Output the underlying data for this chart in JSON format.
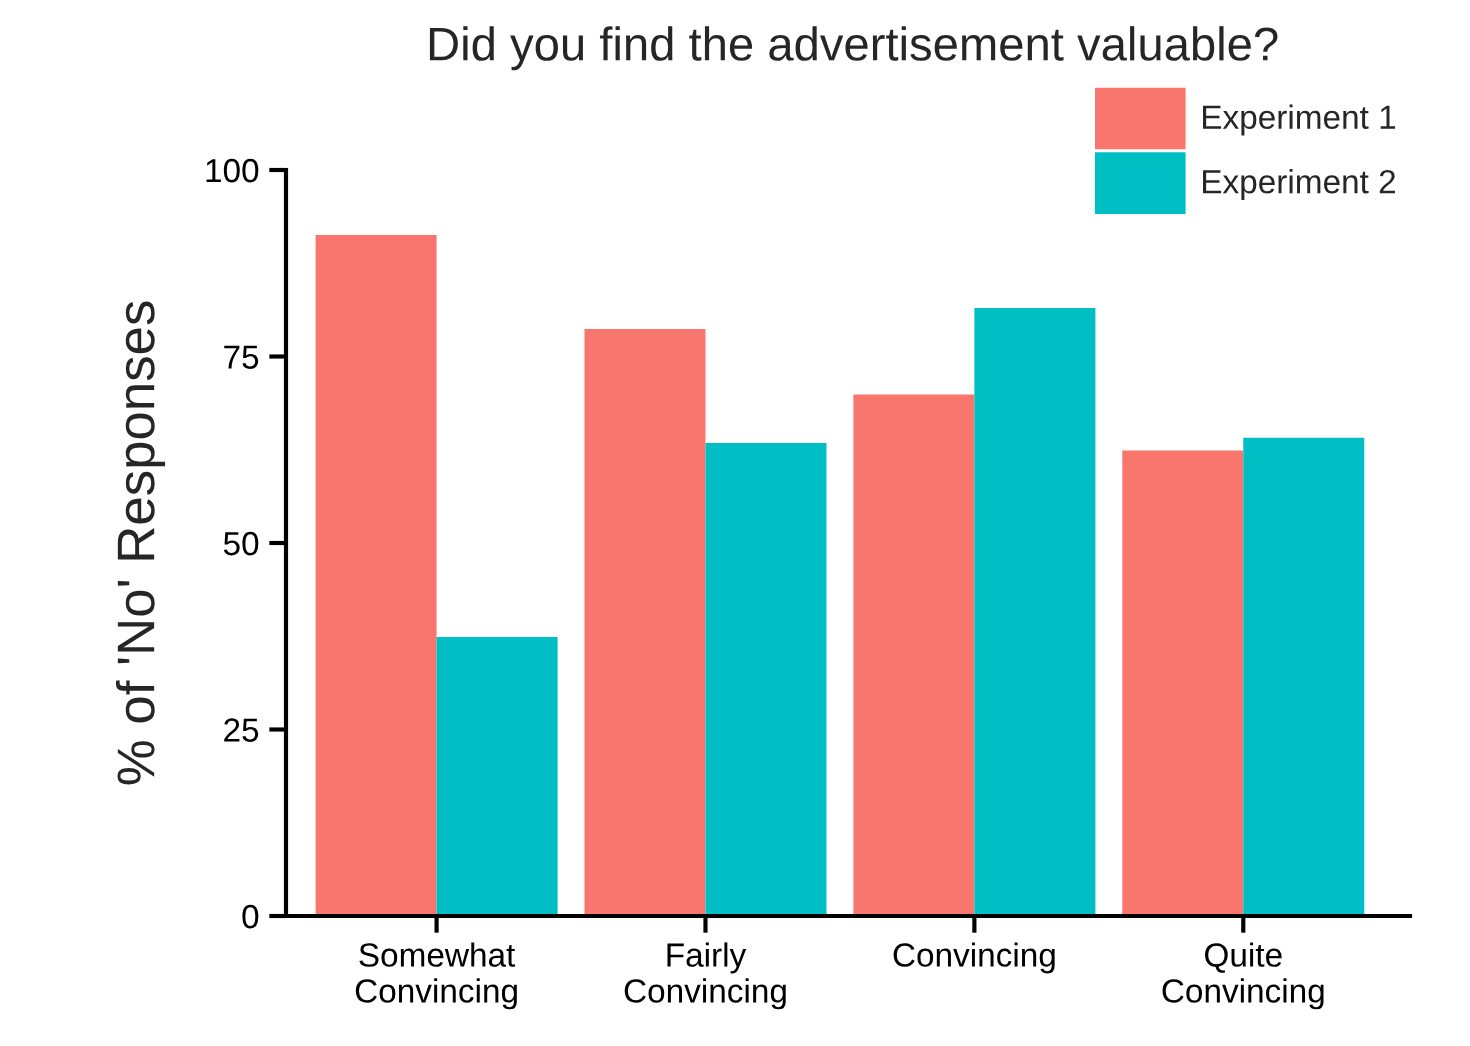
{
  "chart_data": {
    "type": "bar",
    "title": "Did you find the advertisement valuable?",
    "ylabel": "% of 'No' Responses",
    "categories": [
      "Somewhat\nConvincing",
      "Fairly\nConvincing",
      "Convincing",
      "Quite\nConvincing"
    ],
    "series": [
      {
        "name": "Experiment 1",
        "color": "#f8766d",
        "values": [
          91.3,
          78.7,
          69.9,
          62.4
        ]
      },
      {
        "name": "Experiment 2",
        "color": "#00bfc4",
        "values": [
          37.4,
          63.4,
          81.5,
          64.1
        ]
      }
    ],
    "ylim": [
      0,
      100
    ],
    "yticks": [
      0,
      25,
      50,
      75,
      100
    ],
    "grid": false,
    "legend": "top right"
  }
}
